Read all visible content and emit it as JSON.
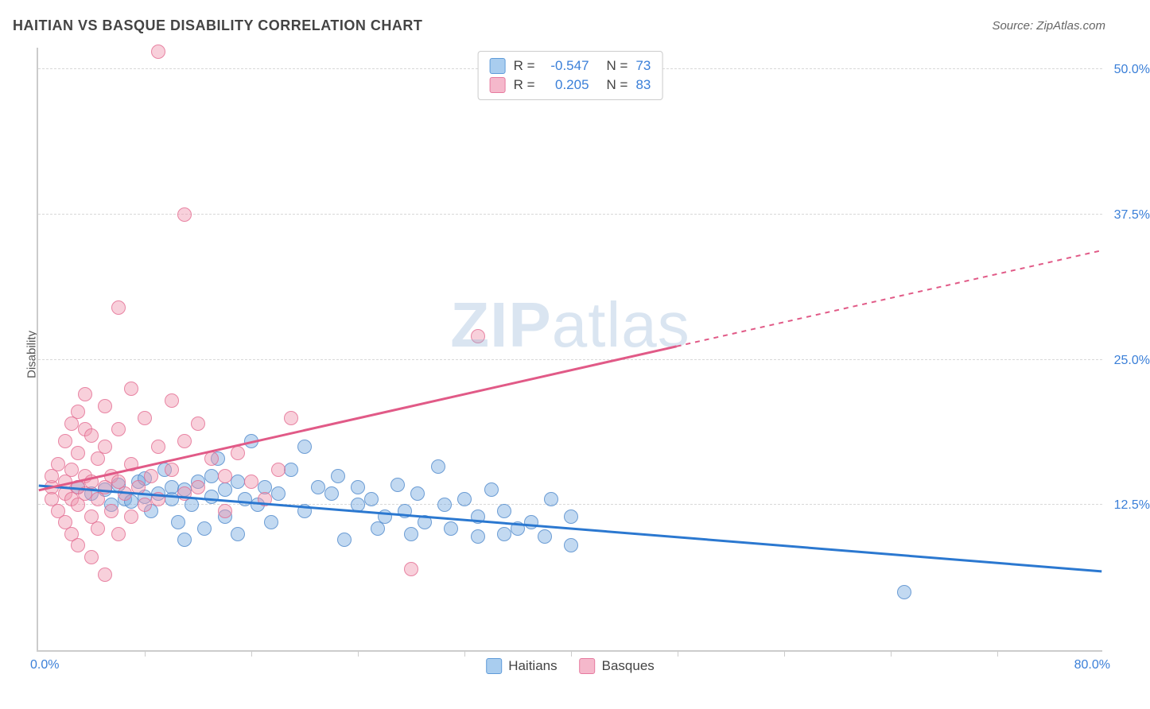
{
  "header": {
    "title": "HAITIAN VS BASQUE DISABILITY CORRELATION CHART",
    "source": "Source: ZipAtlas.com"
  },
  "watermark": {
    "part1": "ZIP",
    "part2": "atlas"
  },
  "chart": {
    "type": "scatter",
    "ylabel": "Disability",
    "xlim": [
      0,
      80
    ],
    "ylim": [
      0,
      52
    ],
    "x_origin_label": "0.0%",
    "x_max_label": "80.0%",
    "y_ticks": [
      {
        "v": 12.5,
        "label": "12.5%"
      },
      {
        "v": 25.0,
        "label": "25.0%"
      },
      {
        "v": 37.5,
        "label": "37.5%"
      },
      {
        "v": 50.0,
        "label": "50.0%"
      }
    ],
    "x_tick_step": 8,
    "background_color": "#ffffff",
    "grid_color": "#d8d8d8",
    "axis_color": "#cccccc",
    "tick_label_color": "#3a7fd8",
    "series": [
      {
        "name": "Haitians",
        "color_fill": "rgba(120,170,225,0.45)",
        "color_stroke": "rgba(70,130,200,0.7)",
        "swatch_fill": "#a9cdef",
        "swatch_stroke": "#5f9bd9",
        "trend_color": "#2b78d0",
        "trend_dash": "none",
        "trend": {
          "x1": 0,
          "y1": 14.2,
          "x2": 80,
          "y2": 6.8
        },
        "R": "-0.547",
        "N": "73",
        "points": [
          [
            3,
            14
          ],
          [
            4,
            13.5
          ],
          [
            5,
            13.8
          ],
          [
            5.5,
            12.5
          ],
          [
            6,
            14.2
          ],
          [
            6.5,
            13
          ],
          [
            7,
            12.8
          ],
          [
            7.5,
            14.5
          ],
          [
            8,
            13.2
          ],
          [
            8,
            14.8
          ],
          [
            8.5,
            12
          ],
          [
            9,
            13.5
          ],
          [
            9.5,
            15.5
          ],
          [
            10,
            13
          ],
          [
            10,
            14
          ],
          [
            10.5,
            11
          ],
          [
            11,
            9.5
          ],
          [
            11,
            13.8
          ],
          [
            11.5,
            12.5
          ],
          [
            12,
            14.5
          ],
          [
            12.5,
            10.5
          ],
          [
            13,
            15
          ],
          [
            13,
            13.2
          ],
          [
            13.5,
            16.5
          ],
          [
            14,
            11.5
          ],
          [
            14,
            13.8
          ],
          [
            15,
            10
          ],
          [
            15,
            14.5
          ],
          [
            15.5,
            13
          ],
          [
            16,
            18
          ],
          [
            16.5,
            12.5
          ],
          [
            17,
            14
          ],
          [
            17.5,
            11
          ],
          [
            18,
            13.5
          ],
          [
            19,
            15.5
          ],
          [
            20,
            17.5
          ],
          [
            20,
            12
          ],
          [
            21,
            14
          ],
          [
            22,
            13.5
          ],
          [
            22.5,
            15
          ],
          [
            23,
            9.5
          ],
          [
            24,
            12.5
          ],
          [
            24,
            14
          ],
          [
            25,
            13
          ],
          [
            25.5,
            10.5
          ],
          [
            26,
            11.5
          ],
          [
            27,
            14.2
          ],
          [
            27.5,
            12
          ],
          [
            28,
            10
          ],
          [
            28.5,
            13.5
          ],
          [
            29,
            11
          ],
          [
            30,
            15.8
          ],
          [
            30.5,
            12.5
          ],
          [
            31,
            10.5
          ],
          [
            32,
            13
          ],
          [
            33,
            9.8
          ],
          [
            33,
            11.5
          ],
          [
            34,
            13.8
          ],
          [
            35,
            10
          ],
          [
            35,
            12
          ],
          [
            36,
            10.5
          ],
          [
            37,
            11
          ],
          [
            38,
            9.8
          ],
          [
            38.5,
            13
          ],
          [
            40,
            9
          ],
          [
            40,
            11.5
          ],
          [
            65,
            5
          ]
        ]
      },
      {
        "name": "Basques",
        "color_fill": "rgba(240,150,175,0.45)",
        "color_stroke": "rgba(225,100,140,0.7)",
        "swatch_fill": "#f5b8cb",
        "swatch_stroke": "#e67a9f",
        "trend_color": "#e15a87",
        "trend_dash": "solid_then_dashed",
        "trend_solid_end_x": 48,
        "trend": {
          "x1": 0,
          "y1": 13.8,
          "x2": 80,
          "y2": 34.5
        },
        "R": "0.205",
        "N": "83",
        "points": [
          [
            1,
            14
          ],
          [
            1,
            15
          ],
          [
            1,
            13
          ],
          [
            1.5,
            16
          ],
          [
            1.5,
            12
          ],
          [
            2,
            18
          ],
          [
            2,
            14.5
          ],
          [
            2,
            13.5
          ],
          [
            2,
            11
          ],
          [
            2.5,
            19.5
          ],
          [
            2.5,
            15.5
          ],
          [
            2.5,
            13
          ],
          [
            2.5,
            10
          ],
          [
            3,
            20.5
          ],
          [
            3,
            17
          ],
          [
            3,
            14
          ],
          [
            3,
            12.5
          ],
          [
            3,
            9
          ],
          [
            3.5,
            22
          ],
          [
            3.5,
            19
          ],
          [
            3.5,
            15
          ],
          [
            3.5,
            13.5
          ],
          [
            4,
            18.5
          ],
          [
            4,
            14.5
          ],
          [
            4,
            11.5
          ],
          [
            4,
            8
          ],
          [
            4.5,
            16.5
          ],
          [
            4.5,
            13
          ],
          [
            4.5,
            10.5
          ],
          [
            5,
            21
          ],
          [
            5,
            17.5
          ],
          [
            5,
            14
          ],
          [
            5,
            6.5
          ],
          [
            5.5,
            15
          ],
          [
            5.5,
            12
          ],
          [
            6,
            29.5
          ],
          [
            6,
            19
          ],
          [
            6,
            14.5
          ],
          [
            6,
            10
          ],
          [
            6.5,
            13.5
          ],
          [
            7,
            22.5
          ],
          [
            7,
            16
          ],
          [
            7,
            11.5
          ],
          [
            7.5,
            14
          ],
          [
            8,
            20
          ],
          [
            8,
            12.5
          ],
          [
            8.5,
            15
          ],
          [
            9,
            51.5
          ],
          [
            9,
            17.5
          ],
          [
            9,
            13
          ],
          [
            10,
            21.5
          ],
          [
            10,
            15.5
          ],
          [
            11,
            37.5
          ],
          [
            11,
            18
          ],
          [
            11,
            13.5
          ],
          [
            12,
            19.5
          ],
          [
            12,
            14
          ],
          [
            13,
            16.5
          ],
          [
            14,
            15
          ],
          [
            14,
            12
          ],
          [
            15,
            17
          ],
          [
            16,
            14.5
          ],
          [
            17,
            13
          ],
          [
            18,
            15.5
          ],
          [
            19,
            20
          ],
          [
            28,
            7
          ],
          [
            33,
            27
          ]
        ]
      }
    ],
    "legend_bottom": [
      {
        "label": "Haitians",
        "fill": "#a9cdef",
        "stroke": "#5f9bd9"
      },
      {
        "label": "Basques",
        "fill": "#f5b8cb",
        "stroke": "#e67a9f"
      }
    ]
  }
}
